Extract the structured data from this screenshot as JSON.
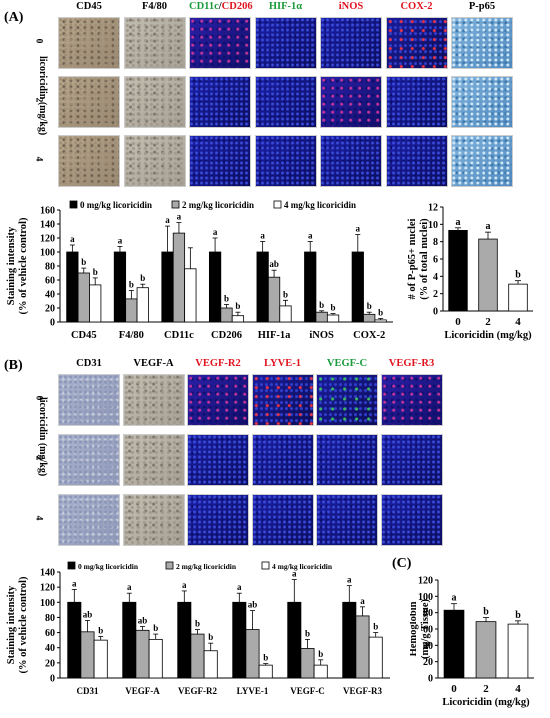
{
  "panel_a": {
    "label": "(A)",
    "columns": [
      {
        "parts": [
          {
            "t": "CD45",
            "c": "#000000"
          }
        ]
      },
      {
        "parts": [
          {
            "t": "F4/80",
            "c": "#000000"
          }
        ]
      },
      {
        "parts": [
          {
            "t": "CD11c",
            "c": "#1a9a3a"
          },
          {
            "t": "/",
            "c": "#000000"
          },
          {
            "t": "CD206",
            "c": "#e0141e"
          }
        ]
      },
      {
        "parts": [
          {
            "t": "HIF-1α",
            "c": "#1a9a3a"
          }
        ]
      },
      {
        "parts": [
          {
            "t": "iNOS",
            "c": "#e0141e"
          }
        ]
      },
      {
        "parts": [
          {
            "t": "COX-2",
            "c": "#e0141e"
          }
        ]
      },
      {
        "parts": [
          {
            "t": "P-p65",
            "c": "#000000"
          }
        ]
      }
    ],
    "rows": [
      "0",
      "2",
      "4"
    ],
    "row_axis_label": "licoricidin (mg/kg)"
  },
  "panel_b": {
    "label": "(B)",
    "columns": [
      {
        "parts": [
          {
            "t": "CD31",
            "c": "#000000"
          }
        ]
      },
      {
        "parts": [
          {
            "t": "VEGF-A",
            "c": "#000000"
          }
        ]
      },
      {
        "parts": [
          {
            "t": "VEGF-R2",
            "c": "#e0141e"
          }
        ]
      },
      {
        "parts": [
          {
            "t": "LYVE-1",
            "c": "#e0141e"
          }
        ]
      },
      {
        "parts": [
          {
            "t": "VEGF-C",
            "c": "#1a9a3a"
          }
        ]
      },
      {
        "parts": [
          {
            "t": "VEGF-R3",
            "c": "#e0141e"
          }
        ]
      }
    ],
    "rows": [
      "0",
      "2",
      "4"
    ],
    "row_axis_label": "licoricidin (mg/kg)"
  },
  "panel_c": {
    "label": "(C)"
  },
  "chart_data": [
    {
      "type": "bar",
      "ylabel": "Staining intensity\n(% of vehicle control)",
      "ylim": [
        0,
        160
      ],
      "yticks": [
        0,
        20,
        40,
        60,
        80,
        100,
        120,
        140,
        160
      ],
      "legend_position": "top",
      "categories": [
        "CD45",
        "F4/80",
        "CD11c",
        "CD206",
        "HIF-1a",
        "iNOS",
        "COX-2"
      ],
      "series": [
        {
          "name": "0 mg/kg licoricidin",
          "color": "#000000",
          "values": [
            100,
            100,
            100,
            100,
            100,
            100,
            100
          ],
          "errors": [
            10,
            8,
            37,
            20,
            15,
            15,
            25
          ],
          "letters": [
            "a",
            "a",
            "a",
            "a",
            "a",
            "a",
            "a"
          ]
        },
        {
          "name": "2 mg/kg licoricidin",
          "color": "#aaaaaa",
          "values": [
            70,
            33,
            127,
            20,
            64,
            14,
            11
          ],
          "errors": [
            7,
            12,
            15,
            5,
            10,
            2,
            3
          ],
          "letters": [
            "b",
            "b",
            "a",
            "b",
            "ab",
            "b",
            "b"
          ]
        },
        {
          "name": "4 mg/kg licoricidin",
          "color": "#ffffff",
          "values": [
            53,
            49,
            76,
            9,
            23,
            10,
            3
          ],
          "errors": [
            10,
            5,
            30,
            5,
            8,
            2,
            2
          ],
          "letters": [
            "b",
            "b",
            "",
            "b",
            "b",
            "b",
            "b"
          ]
        }
      ]
    },
    {
      "type": "bar",
      "ylabel": "# of P-p65+ nuclei\n(% of total nuclei)",
      "ylim": [
        0,
        12
      ],
      "yticks": [
        0,
        2,
        4,
        6,
        8,
        10,
        12
      ],
      "xlabel": "Licoricidin  (mg/kg)",
      "categories": [
        "0",
        "2",
        "4"
      ],
      "values": [
        9.3,
        8.3,
        3.1
      ],
      "errors": [
        0.3,
        0.8,
        0.4
      ],
      "colors": [
        "#000000",
        "#aaaaaa",
        "#ffffff"
      ],
      "letters": [
        "a",
        "a",
        "b"
      ]
    },
    {
      "type": "bar",
      "ylabel": "Staining intensity\n(% of vehicle control)",
      "ylim": [
        0,
        140
      ],
      "yticks": [
        0,
        20,
        40,
        60,
        80,
        100,
        120,
        140
      ],
      "legend_position": "top",
      "categories": [
        "CD31",
        "VEGF-A",
        "VEGF-R2",
        "LYVE-1",
        "VEGF-C",
        "VEGF-R3"
      ],
      "series": [
        {
          "name": "0 mg/kg licoricidin",
          "color": "#000000",
          "values": [
            100,
            100,
            100,
            100,
            100,
            100
          ],
          "errors": [
            17,
            12,
            15,
            12,
            30,
            22
          ],
          "letters": [
            "a",
            "a",
            "a",
            "a",
            "a",
            "a"
          ]
        },
        {
          "name": "2 mg/kg licoricidin",
          "color": "#aaaaaa",
          "values": [
            61,
            63,
            58,
            64,
            39,
            82
          ],
          "errors": [
            15,
            5,
            6,
            25,
            12,
            12
          ],
          "letters": [
            "ab",
            "ab",
            "b",
            "ab",
            "b",
            "a"
          ]
        },
        {
          "name": "4 mg/kg licoricidin",
          "color": "#ffffff",
          "values": [
            50,
            51,
            36,
            17,
            17,
            54
          ],
          "errors": [
            5,
            7,
            10,
            2,
            7,
            6
          ],
          "letters": [
            "b",
            "b",
            "b",
            "b",
            "b",
            "b"
          ]
        }
      ]
    },
    {
      "type": "bar",
      "ylabel": "Hemoglobin\n(mg/g Tissue)",
      "ylim": [
        0,
        120
      ],
      "yticks": [
        0,
        20,
        40,
        60,
        80,
        100,
        120
      ],
      "xlabel": "Licoricidin  (mg/kg)",
      "categories": [
        "0",
        "2",
        "4"
      ],
      "values": [
        83,
        69,
        66
      ],
      "errors": [
        8,
        5,
        4
      ],
      "colors": [
        "#000000",
        "#aaaaaa",
        "#ffffff"
      ],
      "letters": [
        "a",
        "b",
        "b"
      ]
    }
  ]
}
